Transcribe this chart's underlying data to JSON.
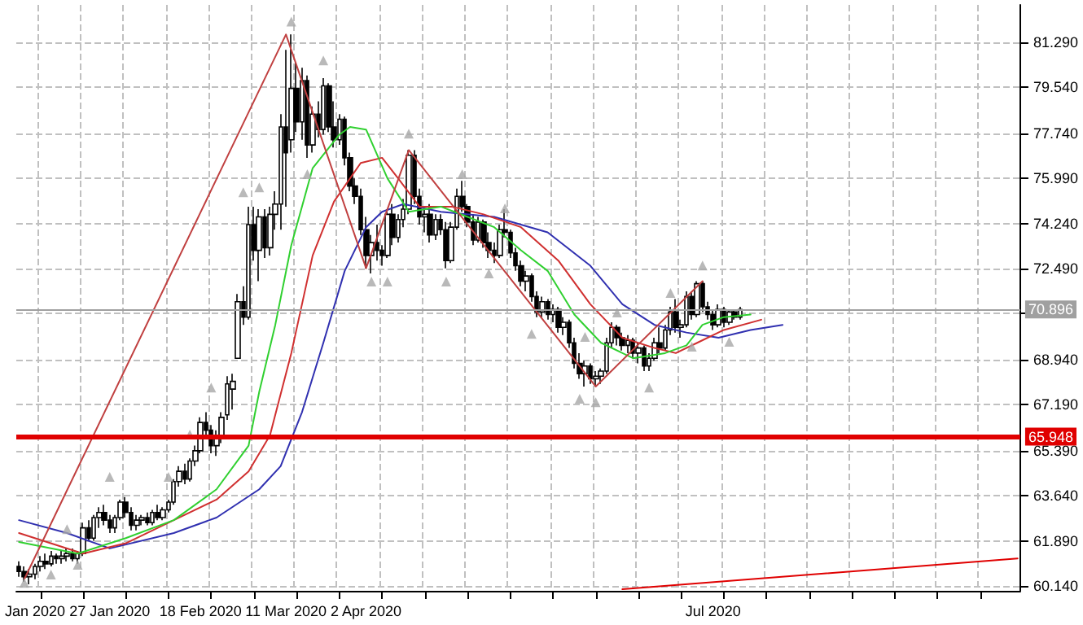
{
  "chart_data": {
    "type": "candlestick",
    "grid": true,
    "categories": [
      null,
      null,
      null,
      "Jan 2020",
      null,
      null,
      null,
      null,
      null,
      null,
      null,
      null,
      null,
      null,
      null,
      null,
      null,
      "27 Jan 2020",
      null,
      null,
      null,
      null,
      null,
      null,
      null,
      null,
      null,
      null,
      null,
      null,
      null,
      null,
      null,
      null,
      "18 Feb 2020",
      null,
      null,
      null,
      null,
      null,
      null,
      null,
      null,
      null,
      null,
      null,
      null,
      null,
      null,
      null,
      "11 Mar 2020",
      null,
      null,
      null,
      null,
      null,
      null,
      null,
      null,
      null,
      null,
      null,
      null,
      null,
      null,
      "2 Apr 2020",
      null,
      null,
      null,
      null,
      null,
      null,
      null,
      null,
      null,
      null,
      null,
      null,
      null,
      null,
      null,
      null,
      null,
      null,
      null,
      null,
      null,
      null,
      null,
      null,
      null,
      null,
      null,
      null,
      null,
      null,
      null,
      null,
      null,
      null,
      null,
      null,
      null,
      null,
      null,
      null,
      null,
      null,
      null,
      null,
      null,
      null,
      null,
      null,
      null,
      null,
      null,
      null,
      null,
      null,
      null,
      null,
      null,
      null,
      null,
      null,
      null,
      null,
      null,
      null,
      "Jul 2020",
      null,
      null,
      null,
      null,
      null,
      null,
      null,
      null,
      null,
      null,
      null,
      null,
      null,
      null,
      null,
      null,
      null,
      null,
      null,
      null,
      null,
      null,
      null,
      null,
      null,
      null,
      null,
      null,
      null,
      null,
      null,
      null,
      null,
      null,
      null,
      null,
      null,
      null,
      null,
      null,
      null,
      null,
      null,
      null,
      null,
      null,
      null,
      null,
      null,
      null,
      null,
      null,
      null,
      null,
      null,
      null,
      null
    ],
    "ylim": [
      59.95,
      82.75
    ],
    "yticks": [
      {
        "value": 60.14,
        "label": "60.140"
      },
      {
        "value": 61.89,
        "label": "61.890"
      },
      {
        "value": 63.64,
        "label": "63.640"
      },
      {
        "value": 65.39,
        "label": "65.390"
      },
      {
        "value": 67.19,
        "label": "67.190"
      },
      {
        "value": 68.94,
        "label": "68.940"
      },
      {
        "value": 70.74,
        "label": null
      },
      {
        "value": 72.49,
        "label": "72.490"
      },
      {
        "value": 74.24,
        "label": "74.240"
      },
      {
        "value": 75.99,
        "label": "75.990"
      },
      {
        "value": 77.74,
        "label": "77.740"
      },
      {
        "value": 79.54,
        "label": "79.540"
      },
      {
        "value": 81.29,
        "label": "81.290"
      }
    ],
    "ref_lines": [
      {
        "axis": "y",
        "value": 65.948,
        "label": "65.948",
        "color": "#e00000"
      },
      {
        "axis": "y",
        "value": 70.896,
        "label": "70.896",
        "color": "#a0a0a0"
      }
    ],
    "series": [
      {
        "type": "line",
        "color": "#3030b0",
        "values": [
          62.7,
          null,
          null,
          null,
          null,
          null,
          null,
          null,
          null,
          62.2,
          null,
          null,
          null,
          null,
          null,
          null,
          null,
          61.6,
          null,
          null,
          null,
          null,
          null,
          null,
          null,
          null,
          null,
          null,
          null,
          62.2,
          null,
          null,
          null,
          null,
          null,
          null,
          null,
          62.8,
          null,
          null,
          null,
          null,
          null,
          null,
          null,
          63.9,
          null,
          null,
          null,
          64.8,
          null,
          null,
          null,
          66.9,
          null,
          null,
          null,
          69.6,
          null,
          null,
          null,
          72.4,
          null,
          null,
          null,
          74.1,
          null,
          null,
          74.7,
          null,
          null,
          null,
          75.0,
          null,
          null,
          null,
          null,
          null,
          null,
          74.7,
          null,
          null,
          null,
          null,
          null,
          null,
          null,
          null,
          null,
          74.5,
          null,
          null,
          null,
          null,
          null,
          null,
          null,
          null,
          null,
          73.9,
          null,
          null,
          null,
          null,
          null,
          null,
          null,
          72.6,
          null,
          null,
          null,
          null,
          null,
          71.1,
          null,
          null,
          null,
          null,
          null,
          70.3,
          null,
          null,
          null,
          null,
          null,
          70.0,
          null,
          null,
          null,
          null,
          null,
          69.8,
          null,
          null,
          null,
          null,
          null,
          70.1,
          null,
          null,
          null,
          null,
          null,
          70.3,
          null,
          null,
          null,
          null,
          null,
          null,
          null,
          null,
          null,
          null,
          null,
          null,
          null,
          null,
          null,
          null,
          null,
          null,
          null,
          null,
          null,
          null,
          null,
          null,
          null,
          null,
          null,
          null,
          null,
          null,
          null,
          null,
          null,
          null,
          null,
          null,
          null,
          null,
          null,
          null,
          null,
          null,
          null,
          null
        ]
      },
      {
        "type": "line",
        "color": "#d03030",
        "values": [
          62.2,
          null,
          null,
          null,
          null,
          null,
          null,
          null,
          null,
          null,
          null,
          null,
          61.4,
          null,
          null,
          null,
          null,
          null,
          null,
          null,
          61.8,
          null,
          null,
          null,
          null,
          null,
          null,
          null,
          null,
          62.7,
          null,
          null,
          null,
          null,
          null,
          null,
          null,
          63.5,
          null,
          null,
          null,
          null,
          null,
          64.6,
          null,
          null,
          null,
          66.0,
          null,
          null,
          null,
          69.2,
          null,
          null,
          null,
          73.0,
          null,
          null,
          null,
          75.1,
          null,
          null,
          null,
          null,
          76.6,
          null,
          null,
          null,
          76.8,
          null,
          null,
          76.0,
          null,
          null,
          null,
          74.9,
          null,
          null,
          null,
          null,
          null,
          74.9,
          null,
          null,
          null,
          null,
          null,
          74.6,
          null,
          null,
          null,
          null,
          null,
          null,
          74.1,
          null,
          null,
          null,
          null,
          null,
          null,
          72.8,
          null,
          null,
          null,
          null,
          null,
          71.1,
          null,
          null,
          null,
          null,
          null,
          69.8,
          null,
          null,
          null,
          null,
          null,
          69.4,
          null,
          null,
          null,
          69.2,
          null,
          null,
          null,
          69.6,
          null,
          null,
          null,
          null,
          70.1,
          null,
          null,
          null,
          null,
          null,
          null,
          70.5,
          null,
          null,
          null,
          null,
          null,
          null,
          null,
          null,
          null,
          null,
          null,
          null,
          null,
          null,
          null,
          null,
          null,
          null,
          null,
          null,
          null,
          null,
          null,
          null,
          null,
          null,
          null,
          null,
          null,
          null,
          null,
          null,
          null,
          null,
          null,
          null,
          null,
          null,
          null,
          null,
          null,
          null,
          null,
          null,
          null,
          null,
          null,
          null
        ]
      },
      {
        "type": "line",
        "color": "#30d030",
        "values": [
          61.85,
          null,
          null,
          null,
          null,
          null,
          null,
          null,
          null,
          null,
          null,
          61.4,
          null,
          null,
          null,
          null,
          null,
          null,
          null,
          null,
          62.0,
          null,
          null,
          null,
          null,
          null,
          null,
          null,
          null,
          62.7,
          null,
          null,
          null,
          null,
          null,
          null,
          null,
          63.9,
          null,
          null,
          null,
          null,
          null,
          65.6,
          null,
          67.7,
          null,
          null,
          70.3,
          null,
          null,
          73.4,
          null,
          null,
          null,
          76.4,
          null,
          null,
          null,
          null,
          77.7,
          null,
          78.0,
          null,
          null,
          77.9,
          null,
          null,
          null,
          76.0,
          null,
          null,
          null,
          74.7,
          null,
          null,
          null,
          null,
          null,
          74.9,
          null,
          null,
          null,
          null,
          74.5,
          null,
          null,
          null,
          null,
          74.1,
          null,
          null,
          null,
          null,
          73.2,
          null,
          null,
          null,
          null,
          72.4,
          null,
          null,
          null,
          null,
          70.7,
          null,
          null,
          null,
          null,
          69.6,
          null,
          null,
          null,
          null,
          null,
          69.0,
          null,
          null,
          null,
          null,
          null,
          69.2,
          null,
          null,
          null,
          69.5,
          null,
          null,
          70.3,
          null,
          null,
          null,
          70.6,
          null,
          null,
          null,
          null,
          70.7,
          null,
          null,
          null,
          null,
          null,
          null,
          null,
          null,
          null,
          null,
          null,
          null,
          null,
          null,
          null,
          null,
          null,
          null,
          null,
          null,
          null,
          null,
          null,
          null,
          null,
          null,
          null,
          null,
          null,
          null,
          null,
          null,
          null,
          null,
          null,
          null,
          null,
          null,
          null,
          null,
          null,
          null,
          null,
          null,
          null,
          null,
          null,
          null,
          null,
          null
        ]
      },
      {
        "type": "line",
        "color": "#c04040",
        "values": [
          null,
          60.4,
          null,
          null,
          null,
          null,
          null,
          null,
          null,
          null,
          null,
          null,
          null,
          null,
          null,
          null,
          null,
          null,
          null,
          null,
          null,
          null,
          null,
          null,
          null,
          null,
          null,
          null,
          null,
          null,
          null,
          null,
          null,
          null,
          null,
          null,
          null,
          null,
          null,
          null,
          null,
          null,
          null,
          null,
          null,
          null,
          null,
          null,
          null,
          null,
          81.6,
          null,
          null,
          null,
          null,
          null,
          null,
          null,
          null,
          null,
          null,
          null,
          null,
          null,
          null,
          72.5,
          null,
          null,
          null,
          null,
          null,
          null,
          null,
          77.1,
          null,
          null,
          null,
          null,
          null,
          null,
          null,
          null,
          null,
          null,
          null,
          null,
          null,
          null,
          null,
          null,
          null,
          null,
          null,
          null,
          null,
          null,
          null,
          null,
          null,
          null,
          null,
          null,
          null,
          null,
          null,
          null,
          null,
          null,
          67.9,
          null,
          null,
          null,
          null,
          null,
          null,
          null,
          null,
          null,
          null,
          null,
          null,
          null,
          null,
          null,
          null,
          null,
          null,
          null,
          72.0,
          null,
          null,
          null,
          null,
          null,
          null,
          null,
          null,
          null,
          null,
          null,
          null,
          null,
          null,
          null,
          null,
          null,
          null,
          null,
          null,
          null,
          null,
          null,
          null,
          null,
          null,
          null,
          null,
          null,
          null,
          null,
          null,
          null,
          null,
          null,
          null,
          null,
          null,
          null,
          null,
          null,
          null,
          null,
          null,
          null,
          null,
          null,
          null,
          null,
          null,
          null,
          null,
          null,
          null,
          null,
          null,
          null,
          null,
          null
        ]
      },
      {
        "type": "line",
        "color": "#e00000",
        "values": [
          null,
          null,
          null,
          null,
          null,
          null,
          null,
          null,
          null,
          null,
          null,
          null,
          null,
          null,
          null,
          null,
          null,
          null,
          null,
          null,
          null,
          null,
          null,
          null,
          null,
          null,
          null,
          null,
          null,
          null,
          null,
          null,
          null,
          null,
          null,
          null,
          null,
          null,
          null,
          null,
          null,
          null,
          null,
          null,
          null,
          null,
          null,
          null,
          null,
          null,
          null,
          null,
          null,
          null,
          null,
          null,
          null,
          null,
          null,
          null,
          null,
          null,
          null,
          null,
          null,
          null,
          null,
          null,
          null,
          null,
          null,
          null,
          null,
          null,
          null,
          null,
          null,
          null,
          null,
          null,
          null,
          null,
          null,
          null,
          null,
          null,
          null,
          null,
          null,
          null,
          null,
          null,
          null,
          null,
          null,
          null,
          null,
          null,
          null,
          null,
          null,
          null,
          null,
          null,
          null,
          null,
          null,
          null,
          null,
          null,
          null,
          null,
          null,
          60.01,
          null,
          null,
          null,
          null,
          null,
          null,
          null,
          null,
          null,
          null,
          null,
          null,
          null,
          null,
          null,
          null,
          null,
          null,
          null,
          null,
          null,
          null,
          null,
          null,
          null,
          null,
          null,
          null,
          null,
          null,
          null,
          null,
          null,
          null,
          null,
          null,
          null,
          null,
          null,
          null,
          null,
          null,
          null,
          null,
          null,
          null,
          null,
          null,
          null,
          null,
          null,
          null,
          null,
          null,
          null,
          null,
          null,
          null,
          null,
          null,
          null,
          null,
          null,
          null,
          null,
          null,
          null,
          null,
          null,
          null,
          null,
          null,
          null,
          61.21
        ]
      },
      {
        "type": "scatter",
        "marker": "triangle",
        "color": "#a8a8a8",
        "values": [
          null,
          null,
          null,
          null,
          null,
          null,
          null,
          null,
          null,
          62.35,
          null,
          null,
          null,
          null,
          null,
          null,
          null,
          64.38,
          null,
          null,
          null,
          null,
          null,
          null,
          null,
          null,
          null,
          null,
          64.38,
          null,
          null,
          null,
          66.03,
          null,
          null,
          null,
          67.86,
          null,
          null,
          null,
          null,
          null,
          75.46,
          null,
          null,
          75.65,
          null,
          null,
          null,
          null,
          null,
          82.1,
          null,
          null,
          null,
          null,
          null,
          80.59,
          null,
          null,
          null,
          null,
          null,
          null,
          null,
          null,
          null,
          null,
          null,
          null,
          null,
          null,
          null,
          77.74,
          null,
          null,
          null,
          null,
          null,
          null,
          null,
          null,
          null,
          76.16,
          null,
          null,
          null,
          null,
          null,
          null,
          null,
          74.83,
          null,
          null,
          null,
          null,
          null,
          null,
          null,
          null,
          null,
          null,
          null,
          null,
          null,
          null,
          69.83,
          null,
          null,
          null,
          null,
          null,
          70.78,
          null,
          null,
          null,
          null,
          null,
          null,
          null,
          null,
          null,
          71.54,
          null,
          null,
          null,
          null,
          null,
          72.61,
          null,
          null,
          null,
          null,
          null,
          null,
          null,
          null,
          null,
          null,
          null,
          null,
          null,
          null,
          null,
          null,
          null,
          null,
          null,
          null,
          null,
          null,
          null,
          null,
          null,
          null,
          null,
          null,
          null,
          null,
          null,
          null,
          null,
          null,
          null,
          null,
          null,
          null,
          null,
          null,
          null,
          null,
          null,
          null,
          null,
          null,
          null,
          null,
          null,
          null,
          null,
          null,
          null,
          null,
          null,
          null,
          null,
          null,
          null
        ]
      },
      {
        "type": "scatter",
        "marker": "triangle",
        "color": "#a8a8a8",
        "values": [
          null,
          60.26,
          null,
          null,
          null,
          null,
          60.58,
          null,
          null,
          null,
          null,
          60.96,
          null,
          null,
          null,
          null,
          null,
          null,
          null,
          null,
          null,
          null,
          null,
          null,
          null,
          null,
          null,
          null,
          null,
          null,
          null,
          null,
          null,
          null,
          null,
          null,
          null,
          null,
          null,
          null,
          null,
          null,
          null,
          null,
          null,
          null,
          null,
          null,
          null,
          null,
          null,
          null,
          null,
          null,
          76.16,
          null,
          null,
          null,
          null,
          null,
          null,
          null,
          null,
          null,
          null,
          null,
          71.98,
          null,
          null,
          71.98,
          null,
          null,
          null,
          null,
          null,
          null,
          null,
          null,
          null,
          null,
          71.98,
          null,
          null,
          null,
          null,
          null,
          null,
          null,
          72.3,
          null,
          null,
          null,
          null,
          null,
          null,
          null,
          69.95,
          null,
          null,
          null,
          null,
          null,
          null,
          null,
          null,
          67.42,
          null,
          null,
          67.29,
          null,
          null,
          null,
          null,
          null,
          null,
          null,
          null,
          null,
          67.86,
          null,
          null,
          null,
          null,
          null,
          null,
          null,
          69.45,
          null,
          null,
          null,
          null,
          null,
          null,
          69.64,
          null,
          null,
          null,
          null,
          null,
          null,
          null,
          null,
          null,
          null,
          null,
          null,
          null,
          null,
          null,
          null,
          null,
          null,
          null,
          null,
          null,
          null,
          null,
          null,
          null,
          null,
          null,
          null,
          null,
          null,
          null,
          null,
          null,
          null,
          null,
          null,
          null,
          null,
          null,
          null,
          null,
          null,
          null,
          null,
          null,
          null,
          null,
          null,
          null,
          null,
          null,
          null,
          null,
          null
        ]
      },
      {
        "type": "candlestick",
        "color": "#000000",
        "ohlc": [
          [
            60.9,
            61.1,
            60.5,
            60.7
          ],
          [
            60.7,
            60.9,
            60.3,
            60.5
          ],
          [
            60.5,
            60.8,
            60.2,
            60.6
          ],
          [
            60.6,
            61.0,
            60.4,
            60.9
          ],
          [
            60.9,
            61.3,
            60.7,
            61.1
          ],
          [
            61.1,
            61.4,
            60.8,
            61.0
          ],
          [
            61.0,
            61.5,
            60.9,
            61.3
          ],
          [
            61.3,
            61.4,
            61.0,
            61.2
          ],
          [
            61.2,
            61.5,
            61.0,
            61.3
          ],
          [
            61.3,
            61.6,
            61.1,
            61.4
          ],
          [
            61.4,
            61.6,
            61.1,
            61.2
          ],
          [
            61.2,
            61.5,
            61.0,
            61.4
          ],
          [
            61.4,
            62.6,
            61.3,
            62.4
          ],
          [
            62.4,
            62.7,
            61.9,
            62.0
          ],
          [
            62.0,
            62.9,
            61.9,
            62.8
          ],
          [
            62.8,
            63.2,
            62.4,
            63.0
          ],
          [
            63.0,
            63.3,
            62.5,
            62.7
          ],
          [
            62.7,
            62.9,
            62.2,
            62.4
          ],
          [
            62.4,
            62.9,
            62.2,
            62.8
          ],
          [
            62.8,
            63.5,
            62.7,
            63.4
          ],
          [
            63.4,
            63.6,
            62.8,
            63.0
          ],
          [
            63.0,
            63.2,
            62.3,
            62.5
          ],
          [
            62.5,
            62.9,
            62.3,
            62.7
          ],
          [
            62.7,
            62.9,
            62.5,
            62.8
          ],
          [
            62.8,
            63.0,
            62.5,
            62.6
          ],
          [
            62.6,
            63.1,
            62.5,
            63.0
          ],
          [
            63.0,
            63.3,
            62.7,
            62.8
          ],
          [
            62.8,
            63.2,
            62.7,
            63.1
          ],
          [
            63.1,
            63.5,
            63.0,
            63.4
          ],
          [
            63.4,
            64.3,
            63.3,
            64.2
          ],
          [
            64.2,
            64.8,
            64.0,
            64.6
          ],
          [
            64.6,
            64.9,
            64.1,
            64.3
          ],
          [
            64.3,
            65.1,
            64.2,
            65.0
          ],
          [
            65.0,
            65.6,
            64.8,
            65.4
          ],
          [
            65.4,
            66.7,
            65.3,
            66.5
          ],
          [
            66.5,
            66.9,
            65.9,
            66.2
          ],
          [
            66.2,
            66.4,
            65.3,
            65.6
          ],
          [
            65.6,
            66.2,
            65.2,
            65.9
          ],
          [
            65.9,
            66.9,
            65.7,
            66.7
          ],
          [
            66.8,
            68.3,
            66.6,
            68.0
          ],
          [
            67.8,
            68.4,
            67.0,
            68.1
          ],
          [
            69.0,
            71.5,
            69.0,
            71.2
          ],
          [
            71.2,
            71.8,
            70.3,
            70.6
          ],
          [
            70.6,
            74.9,
            70.5,
            74.2
          ],
          [
            74.2,
            74.9,
            72.8,
            73.2
          ],
          [
            73.2,
            74.8,
            72.0,
            74.5
          ],
          [
            74.5,
            74.8,
            72.9,
            73.3
          ],
          [
            73.3,
            74.9,
            73.0,
            74.6
          ],
          [
            74.6,
            75.5,
            74.0,
            75.0
          ],
          [
            75.0,
            78.5,
            74.0,
            78.0
          ],
          [
            78.0,
            81.0,
            74.9,
            77.0
          ],
          [
            77.5,
            81.6,
            77.0,
            79.5
          ],
          [
            79.5,
            80.5,
            77.8,
            78.2
          ],
          [
            78.2,
            80.3,
            77.5,
            79.8
          ],
          [
            79.8,
            80.0,
            76.8,
            77.3
          ],
          [
            77.3,
            78.8,
            77.0,
            78.5
          ],
          [
            78.5,
            79.0,
            77.6,
            77.9
          ],
          [
            77.9,
            79.9,
            77.7,
            79.6
          ],
          [
            79.6,
            79.7,
            77.8,
            78.0
          ],
          [
            78.0,
            79.0,
            77.2,
            77.5
          ],
          [
            77.5,
            78.5,
            77.3,
            78.3
          ],
          [
            78.3,
            78.4,
            76.5,
            76.8
          ],
          [
            76.8,
            77.0,
            75.5,
            75.7
          ],
          [
            75.7,
            76.0,
            75.0,
            75.3
          ],
          [
            75.3,
            75.6,
            73.8,
            74.0
          ],
          [
            74.0,
            74.5,
            72.5,
            73.0
          ],
          [
            73.0,
            73.8,
            72.3,
            73.5
          ],
          [
            73.5,
            74.2,
            72.8,
            73.2
          ],
          [
            73.2,
            73.4,
            72.6,
            73.0
          ],
          [
            73.0,
            74.8,
            72.9,
            74.6
          ],
          [
            74.6,
            75.0,
            73.4,
            73.7
          ],
          [
            73.7,
            74.6,
            73.5,
            74.4
          ],
          [
            74.4,
            75.2,
            74.1,
            74.8
          ],
          [
            74.8,
            77.1,
            74.6,
            76.9
          ],
          [
            76.9,
            77.1,
            75.0,
            75.3
          ],
          [
            75.3,
            75.6,
            74.2,
            74.5
          ],
          [
            74.5,
            74.8,
            73.9,
            74.6
          ],
          [
            74.6,
            75.0,
            73.5,
            73.8
          ],
          [
            73.8,
            74.6,
            73.6,
            74.4
          ],
          [
            74.4,
            74.6,
            73.8,
            74.0
          ],
          [
            74.0,
            74.3,
            72.5,
            72.8
          ],
          [
            72.8,
            74.3,
            72.7,
            74.1
          ],
          [
            74.1,
            75.6,
            74.0,
            75.3
          ],
          [
            75.3,
            75.9,
            74.7,
            74.9
          ],
          [
            74.9,
            75.0,
            74.1,
            74.3
          ],
          [
            74.3,
            74.6,
            73.4,
            73.6
          ],
          [
            73.6,
            74.5,
            73.5,
            74.3
          ],
          [
            74.3,
            74.4,
            73.3,
            73.5
          ],
          [
            73.5,
            73.9,
            72.9,
            73.2
          ],
          [
            73.2,
            73.5,
            72.7,
            73.0
          ],
          [
            73.0,
            74.2,
            72.9,
            74.0
          ],
          [
            74.0,
            74.8,
            73.7,
            73.9
          ],
          [
            73.9,
            74.0,
            72.9,
            73.1
          ],
          [
            73.1,
            73.3,
            72.4,
            72.6
          ],
          [
            72.6,
            72.8,
            71.8,
            72.0
          ],
          [
            72.0,
            72.4,
            71.6,
            72.2
          ],
          [
            72.2,
            72.3,
            71.2,
            71.4
          ],
          [
            71.4,
            71.6,
            70.6,
            70.8
          ],
          [
            70.8,
            71.4,
            70.6,
            71.2
          ],
          [
            71.2,
            71.3,
            70.5,
            70.7
          ],
          [
            70.7,
            71.1,
            70.4,
            70.9
          ],
          [
            70.9,
            71.0,
            70.0,
            70.2
          ],
          [
            70.2,
            70.6,
            69.9,
            70.4
          ],
          [
            70.4,
            70.5,
            69.4,
            69.6
          ],
          [
            69.6,
            69.8,
            68.6,
            68.8
          ],
          [
            68.8,
            69.2,
            68.2,
            68.4
          ],
          [
            68.4,
            68.9,
            67.9,
            68.7
          ],
          [
            68.7,
            68.8,
            68.0,
            68.2
          ],
          [
            68.2,
            68.5,
            67.9,
            68.3
          ],
          [
            68.3,
            68.6,
            68.0,
            68.5
          ],
          [
            68.5,
            69.8,
            68.4,
            69.6
          ],
          [
            69.6,
            70.4,
            69.4,
            70.2
          ],
          [
            70.2,
            70.3,
            69.5,
            69.8
          ],
          [
            69.8,
            70.0,
            69.3,
            69.5
          ],
          [
            69.5,
            69.9,
            69.2,
            69.7
          ],
          [
            69.7,
            69.8,
            69.0,
            69.2
          ],
          [
            69.2,
            69.6,
            68.8,
            69.4
          ],
          [
            69.4,
            69.5,
            68.5,
            68.7
          ],
          [
            68.7,
            69.2,
            68.5,
            69.0
          ],
          [
            69.0,
            69.8,
            68.9,
            69.6
          ],
          [
            69.6,
            70.2,
            69.2,
            69.4
          ],
          [
            69.4,
            70.3,
            69.3,
            70.1
          ],
          [
            70.1,
            71.0,
            69.9,
            70.8
          ],
          [
            70.8,
            71.3,
            70.0,
            70.2
          ],
          [
            70.2,
            70.5,
            69.8,
            70.3
          ],
          [
            70.3,
            71.6,
            70.2,
            71.4
          ],
          [
            71.4,
            71.6,
            70.5,
            70.7
          ],
          [
            70.7,
            72.0,
            70.6,
            71.9
          ],
          [
            71.9,
            72.0,
            70.8,
            71.0
          ],
          [
            71.0,
            71.2,
            70.5,
            70.7
          ],
          [
            70.7,
            70.9,
            70.1,
            70.3
          ],
          [
            70.3,
            71.1,
            70.2,
            70.9
          ],
          [
            70.9,
            71.0,
            70.2,
            70.4
          ],
          [
            70.4,
            70.9,
            70.3,
            70.8
          ],
          [
            70.8,
            70.9,
            70.5,
            70.6
          ],
          [
            70.6,
            71.0,
            70.5,
            70.9
          ],
          null,
          null,
          null,
          null,
          null,
          null,
          null,
          null,
          null,
          null,
          null,
          null,
          null,
          null,
          null,
          null,
          null,
          null,
          null,
          null,
          null,
          null,
          null,
          null,
          null,
          null,
          null,
          null,
          null,
          null,
          null,
          null,
          null,
          null,
          null,
          null,
          null,
          null,
          null,
          null,
          null,
          null,
          null,
          null,
          null,
          null,
          null,
          null,
          null,
          null,
          null,
          null
        ]
      }
    ]
  }
}
